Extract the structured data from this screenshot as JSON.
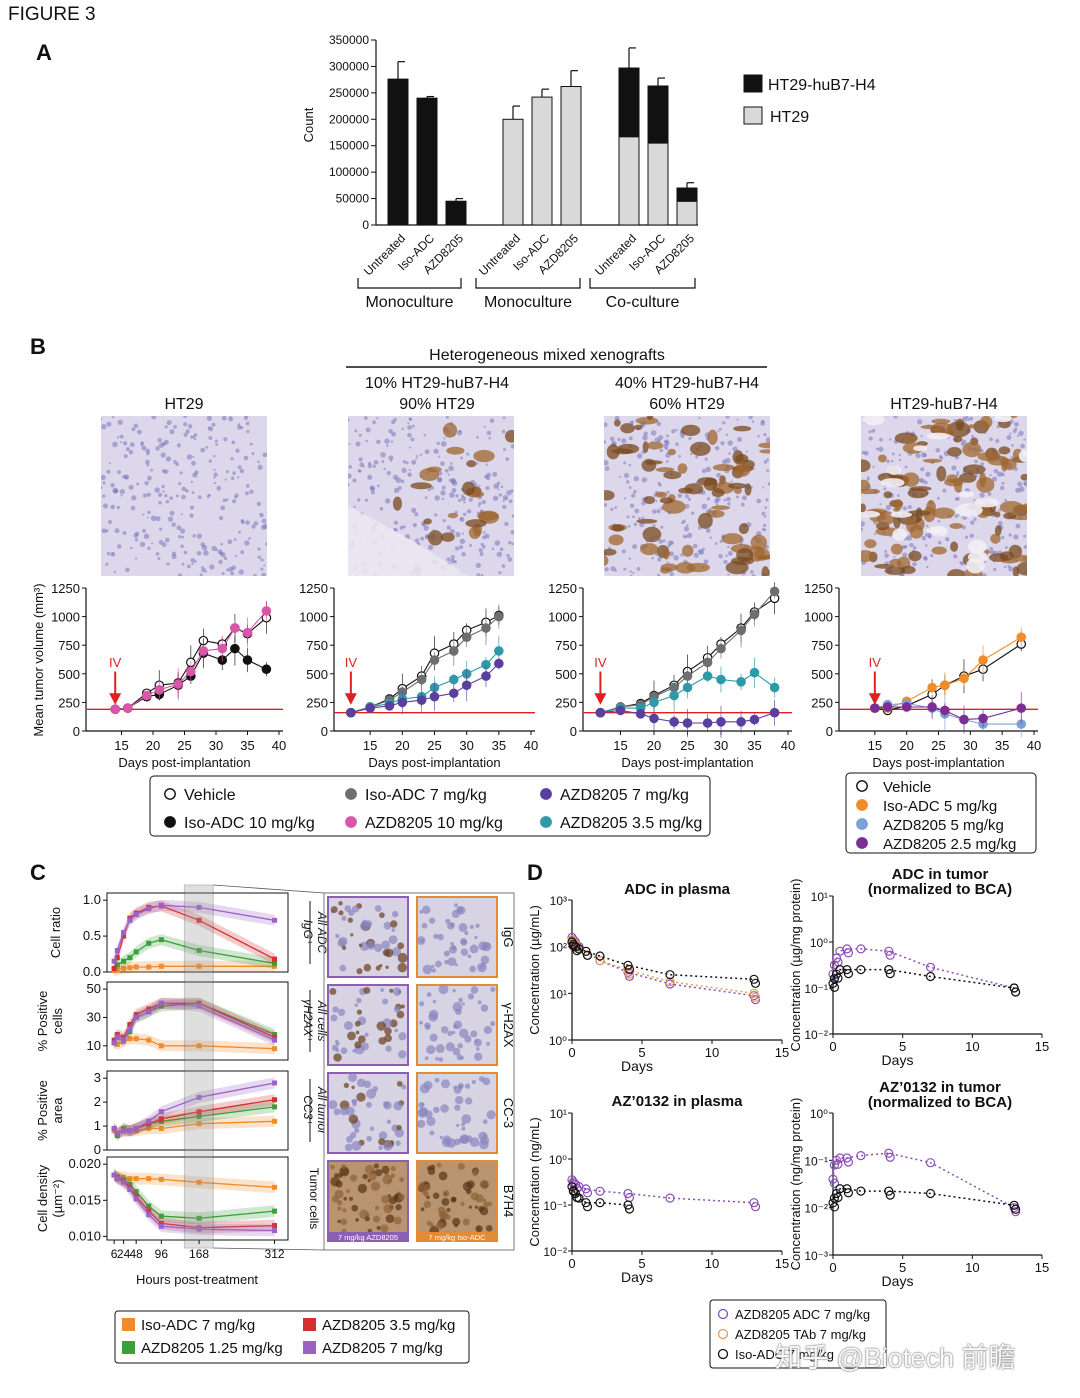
{
  "figure_title": "FIGURE 3",
  "panel_labels": [
    "A",
    "B",
    "C",
    "D"
  ],
  "colors": {
    "huB7H4_bar": "#111111",
    "HT29_bar": "#d9d9d9",
    "red_line": "#e02020",
    "vehicle": "#ffffff",
    "iso_adc_10": "#111111",
    "iso_adc_7": "#6e6e6e",
    "azd_10": "#d957a8",
    "azd_7": "#5a3f9e",
    "azd_35": "#2e9aa8",
    "iso_adc_5": "#f08c2a",
    "azd_5": "#7da0d8",
    "azd_25": "#7b2f95",
    "c_iso": "#f08c2a",
    "c_azd125": "#3aa03a",
    "c_azd35": "#d43030",
    "c_azd7": "#9b63c6",
    "d_adc": "#8b4fb5",
    "d_tab": "#e59a56",
    "d_iso": "#111111"
  },
  "panelA": {
    "ylabel": "Count",
    "yticks": [
      "350000",
      "300000",
      "250000",
      "200000",
      "150000",
      "100000",
      "50000",
      "0"
    ],
    "legend": [
      "HT29-huB7-H4",
      "HT29"
    ],
    "groups": [
      "Monoculture",
      "Monoculture",
      "Co-culture"
    ],
    "bar_labels": [
      "Untreated",
      "Iso-ADC",
      "AZD8205",
      "Untreated",
      "Iso-ADC",
      "AZD8205",
      "Untreated",
      "Iso-ADC",
      "AZD8205"
    ]
  },
  "panelB": {
    "header": "Heterogeneous mixed xenografts",
    "titles": [
      [
        "HT29",
        ""
      ],
      [
        "10% HT29-huB7-H4",
        "90% HT29"
      ],
      [
        "40% HT29-huB7-H4",
        "60% HT29"
      ],
      [
        "HT29-huB7-H4",
        ""
      ]
    ],
    "ylabel": "Mean tumor volume (mm³)",
    "xlabel": "Days post-implantation",
    "yticks": [
      "1250",
      "1000",
      "750",
      "500",
      "250",
      "0"
    ],
    "xticks": [
      "15",
      "20",
      "25",
      "30",
      "35",
      "40"
    ],
    "iv": "IV",
    "legend1": [
      "Vehicle",
      "Iso-ADC 7 mg/kg",
      "AZD8205 7 mg/kg",
      "Iso-ADC 10 mg/kg",
      "AZD8205 10 mg/kg",
      "AZD8205 3.5 mg/kg"
    ],
    "legend2": [
      "Vehicle",
      "Iso-ADC 5 mg/kg",
      "AZD8205 5 mg/kg",
      "AZD8205 2.5 mg/kg"
    ]
  },
  "panelC": {
    "row_ylabels": [
      "Cell ratio",
      "% Positive cells",
      "% Positive area",
      "Cell density (µm⁻²)"
    ],
    "row_yticks": [
      [
        "1.0",
        "0.5",
        "0.0"
      ],
      [
        "50",
        "30",
        "10"
      ],
      [
        "3",
        "2",
        "1",
        "0"
      ],
      [
        "0.020",
        "0.015",
        "0.010"
      ]
    ],
    "fraction_labels": [
      [
        "IgG⁺",
        "All ADC"
      ],
      [
        "γH2AX⁺",
        "All cells"
      ],
      [
        "CC3⁺",
        "All tumor"
      ],
      [
        "Tumor cells",
        ""
      ]
    ],
    "stain_labels": [
      "IgG",
      "γ-H2AX",
      "CC-3",
      "B7H4"
    ],
    "xticks": [
      "6",
      "24",
      "48",
      "96",
      "168",
      "312"
    ],
    "xlabel": "Hours post-treatment",
    "image_captions": [
      "7 mg/kg AZD8205",
      "7 mg/kg Iso-ADC"
    ],
    "legend": [
      "Iso-ADC 7 mg/kg",
      "AZD8205 3.5 mg/kg",
      "AZD8205 1.25 mg/kg",
      "AZD8205 7 mg/kg"
    ]
  },
  "panelD": {
    "titles": [
      [
        "ADC in plasma",
        ""
      ],
      [
        "ADC in tumor",
        "(normalized to BCA)"
      ],
      [
        "AZ’0132 in plasma",
        ""
      ],
      [
        "AZ’0132 in tumor",
        "(normalized to BCA)"
      ]
    ],
    "ylabels": [
      "Concentration (µg/mL)",
      "Concentration (µg/mg protein)",
      "Concentration (ng/mL)",
      "Concentration (ng/mg protein)"
    ],
    "xlabel": "Days",
    "xticks": [
      "0",
      "5",
      "10",
      "15"
    ],
    "yticks": [
      [
        "10³",
        "10²",
        "10¹",
        "10⁰"
      ],
      [
        "10¹",
        "10⁰",
        "10⁻¹",
        "10⁻²"
      ],
      [
        "10¹",
        "10⁰",
        "10⁻¹",
        "10⁻²"
      ],
      [
        "10⁰",
        "10⁻¹",
        "10⁻²",
        "10⁻³"
      ]
    ],
    "legend": [
      "AZD8205 ADC 7 mg/kg",
      "AZD8205 TAb 7 mg/kg",
      "Iso-ADC 7 mg/kg"
    ]
  },
  "watermark": "知乎 @Biotech 前瞻",
  "chart_data": [
    {
      "type": "bar",
      "title": "",
      "ylabel": "Count",
      "ylim": [
        0,
        350000
      ],
      "categories": [
        "Untreated",
        "Iso-ADC",
        "AZD8205",
        "Untreated",
        "Iso-ADC",
        "AZD8205",
        "Untreated",
        "Iso-ADC",
        "AZD8205"
      ],
      "groups": [
        "Monoculture",
        "Monoculture",
        "Co-culture"
      ],
      "series": [
        {
          "name": "HT29-huB7-H4",
          "values": [
            276000,
            240000,
            45000,
            0,
            0,
            0,
            130000,
            108000,
            25000
          ],
          "errors": [
            33000,
            3000,
            5000,
            0,
            0,
            0,
            38000,
            15000,
            10000
          ]
        },
        {
          "name": "HT29",
          "values": [
            0,
            0,
            0,
            200000,
            242000,
            262000,
            167000,
            155000,
            45000
          ],
          "errors": [
            0,
            0,
            0,
            25000,
            15000,
            30000,
            0,
            0,
            0
          ]
        }
      ],
      "legend": "right"
    }
  ]
}
